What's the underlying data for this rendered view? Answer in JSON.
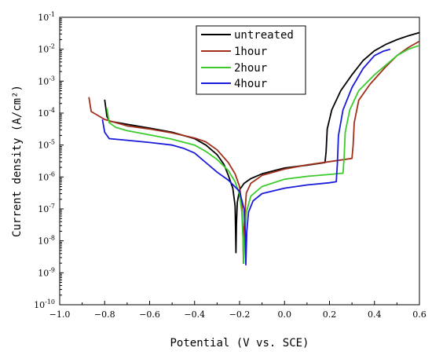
{
  "chart_data": {
    "type": "line",
    "xlabel": "Potential (V vs. SCE)",
    "ylabel": "Current density (A/cm²)",
    "xlim": [
      -1.0,
      0.6
    ],
    "ylim_exponent": [
      -10,
      -1
    ],
    "y_scale": "log",
    "x_ticks": [
      {
        "value": -1.0,
        "label": "−1.0"
      },
      {
        "value": -0.8,
        "label": "−0.8"
      },
      {
        "value": -0.6,
        "label": "−0.6"
      },
      {
        "value": -0.4,
        "label": "−0.4"
      },
      {
        "value": -0.2,
        "label": "−0.2"
      },
      {
        "value": 0.0,
        "label": "0.0"
      },
      {
        "value": 0.2,
        "label": "0.2"
      },
      {
        "value": 0.4,
        "label": "0.4"
      },
      {
        "value": 0.6,
        "label": "0.6"
      }
    ],
    "y_ticks": [
      {
        "exp": -10,
        "label_base": "10",
        "label_exp": "-10"
      },
      {
        "exp": -9,
        "label_base": "10",
        "label_exp": "-9"
      },
      {
        "exp": -8,
        "label_base": "10",
        "label_exp": "-8"
      },
      {
        "exp": -7,
        "label_base": "10",
        "label_exp": "-7"
      },
      {
        "exp": -6,
        "label_base": "10",
        "label_exp": "-6"
      },
      {
        "exp": -5,
        "label_base": "10",
        "label_exp": "-5"
      },
      {
        "exp": -4,
        "label_base": "10",
        "label_exp": "-4"
      },
      {
        "exp": -3,
        "label_base": "10",
        "label_exp": "-3"
      },
      {
        "exp": -2,
        "label_base": "10",
        "label_exp": "-2"
      },
      {
        "exp": -1,
        "label_base": "10",
        "label_exp": "-1"
      }
    ],
    "grid": false,
    "legend_position": "top-center",
    "series": [
      {
        "name": "untreated",
        "color": "#000000",
        "points": [
          [
            -0.8,
            -3.58
          ],
          [
            -0.79,
            -4.1
          ],
          [
            -0.78,
            -4.25
          ],
          [
            -0.7,
            -4.35
          ],
          [
            -0.6,
            -4.47
          ],
          [
            -0.5,
            -4.6
          ],
          [
            -0.4,
            -4.8
          ],
          [
            -0.35,
            -5.0
          ],
          [
            -0.3,
            -5.3
          ],
          [
            -0.27,
            -5.6
          ],
          [
            -0.25,
            -5.95
          ],
          [
            -0.23,
            -6.35
          ],
          [
            -0.22,
            -6.9
          ],
          [
            -0.218,
            -7.5
          ],
          [
            -0.216,
            -8.37
          ],
          [
            -0.214,
            -7.5
          ],
          [
            -0.21,
            -6.8
          ],
          [
            -0.2,
            -6.4
          ],
          [
            -0.18,
            -6.2
          ],
          [
            -0.15,
            -6.05
          ],
          [
            -0.1,
            -5.9
          ],
          [
            0.0,
            -5.72
          ],
          [
            0.1,
            -5.63
          ],
          [
            0.18,
            -5.55
          ],
          [
            0.185,
            -5.2
          ],
          [
            0.19,
            -4.5
          ],
          [
            0.21,
            -3.9
          ],
          [
            0.25,
            -3.3
          ],
          [
            0.3,
            -2.8
          ],
          [
            0.35,
            -2.35
          ],
          [
            0.4,
            -2.05
          ],
          [
            0.45,
            -1.85
          ],
          [
            0.5,
            -1.7
          ],
          [
            0.55,
            -1.58
          ],
          [
            0.6,
            -1.48
          ]
        ]
      },
      {
        "name": "1hour",
        "color": "#A0301A",
        "points": [
          [
            -0.87,
            -3.5
          ],
          [
            -0.86,
            -3.95
          ],
          [
            -0.8,
            -4.2
          ],
          [
            -0.7,
            -4.4
          ],
          [
            -0.6,
            -4.5
          ],
          [
            -0.5,
            -4.62
          ],
          [
            -0.4,
            -4.78
          ],
          [
            -0.35,
            -4.9
          ],
          [
            -0.3,
            -5.15
          ],
          [
            -0.25,
            -5.55
          ],
          [
            -0.22,
            -5.9
          ],
          [
            -0.2,
            -6.3
          ],
          [
            -0.19,
            -6.9
          ],
          [
            -0.185,
            -7.7
          ],
          [
            -0.183,
            -8.7
          ],
          [
            -0.18,
            -7.7
          ],
          [
            -0.175,
            -7.0
          ],
          [
            -0.17,
            -6.5
          ],
          [
            -0.15,
            -6.2
          ],
          [
            -0.1,
            -5.95
          ],
          [
            0.0,
            -5.75
          ],
          [
            0.1,
            -5.62
          ],
          [
            0.2,
            -5.52
          ],
          [
            0.3,
            -5.42
          ],
          [
            0.305,
            -5.0
          ],
          [
            0.31,
            -4.3
          ],
          [
            0.33,
            -3.6
          ],
          [
            0.38,
            -3.1
          ],
          [
            0.45,
            -2.55
          ],
          [
            0.5,
            -2.2
          ],
          [
            0.55,
            -1.95
          ],
          [
            0.6,
            -1.75
          ]
        ]
      },
      {
        "name": "2hour",
        "color": "#3CCB2A",
        "points": [
          [
            -0.79,
            -3.85
          ],
          [
            -0.78,
            -4.3
          ],
          [
            -0.75,
            -4.45
          ],
          [
            -0.7,
            -4.55
          ],
          [
            -0.6,
            -4.68
          ],
          [
            -0.5,
            -4.82
          ],
          [
            -0.4,
            -5.0
          ],
          [
            -0.35,
            -5.2
          ],
          [
            -0.3,
            -5.45
          ],
          [
            -0.25,
            -5.8
          ],
          [
            -0.22,
            -6.15
          ],
          [
            -0.2,
            -6.55
          ],
          [
            -0.19,
            -7.1
          ],
          [
            -0.185,
            -7.9
          ],
          [
            -0.182,
            -8.7
          ],
          [
            -0.178,
            -7.9
          ],
          [
            -0.17,
            -7.1
          ],
          [
            -0.15,
            -6.6
          ],
          [
            -0.1,
            -6.3
          ],
          [
            0.0,
            -6.07
          ],
          [
            0.1,
            -5.98
          ],
          [
            0.2,
            -5.92
          ],
          [
            0.26,
            -5.88
          ],
          [
            0.265,
            -5.4
          ],
          [
            0.27,
            -4.6
          ],
          [
            0.29,
            -3.9
          ],
          [
            0.33,
            -3.3
          ],
          [
            0.4,
            -2.8
          ],
          [
            0.45,
            -2.5
          ],
          [
            0.5,
            -2.2
          ],
          [
            0.55,
            -2.0
          ],
          [
            0.6,
            -1.88
          ]
        ]
      },
      {
        "name": "4hour",
        "color": "#1A1ADB",
        "points": [
          [
            -0.81,
            -4.2
          ],
          [
            -0.8,
            -4.6
          ],
          [
            -0.78,
            -4.8
          ],
          [
            -0.7,
            -4.85
          ],
          [
            -0.6,
            -4.92
          ],
          [
            -0.5,
            -5.0
          ],
          [
            -0.45,
            -5.1
          ],
          [
            -0.4,
            -5.25
          ],
          [
            -0.35,
            -5.55
          ],
          [
            -0.3,
            -5.85
          ],
          [
            -0.25,
            -6.1
          ],
          [
            -0.2,
            -6.45
          ],
          [
            -0.18,
            -7.0
          ],
          [
            -0.175,
            -7.7
          ],
          [
            -0.172,
            -8.75
          ],
          [
            -0.168,
            -7.7
          ],
          [
            -0.16,
            -7.1
          ],
          [
            -0.14,
            -6.75
          ],
          [
            -0.1,
            -6.52
          ],
          [
            0.0,
            -6.35
          ],
          [
            0.1,
            -6.25
          ],
          [
            0.2,
            -6.18
          ],
          [
            0.23,
            -6.15
          ],
          [
            0.235,
            -5.6
          ],
          [
            0.24,
            -4.7
          ],
          [
            0.26,
            -3.9
          ],
          [
            0.3,
            -3.2
          ],
          [
            0.35,
            -2.6
          ],
          [
            0.4,
            -2.2
          ],
          [
            0.44,
            -2.06
          ],
          [
            0.47,
            -2.0
          ]
        ]
      }
    ]
  }
}
